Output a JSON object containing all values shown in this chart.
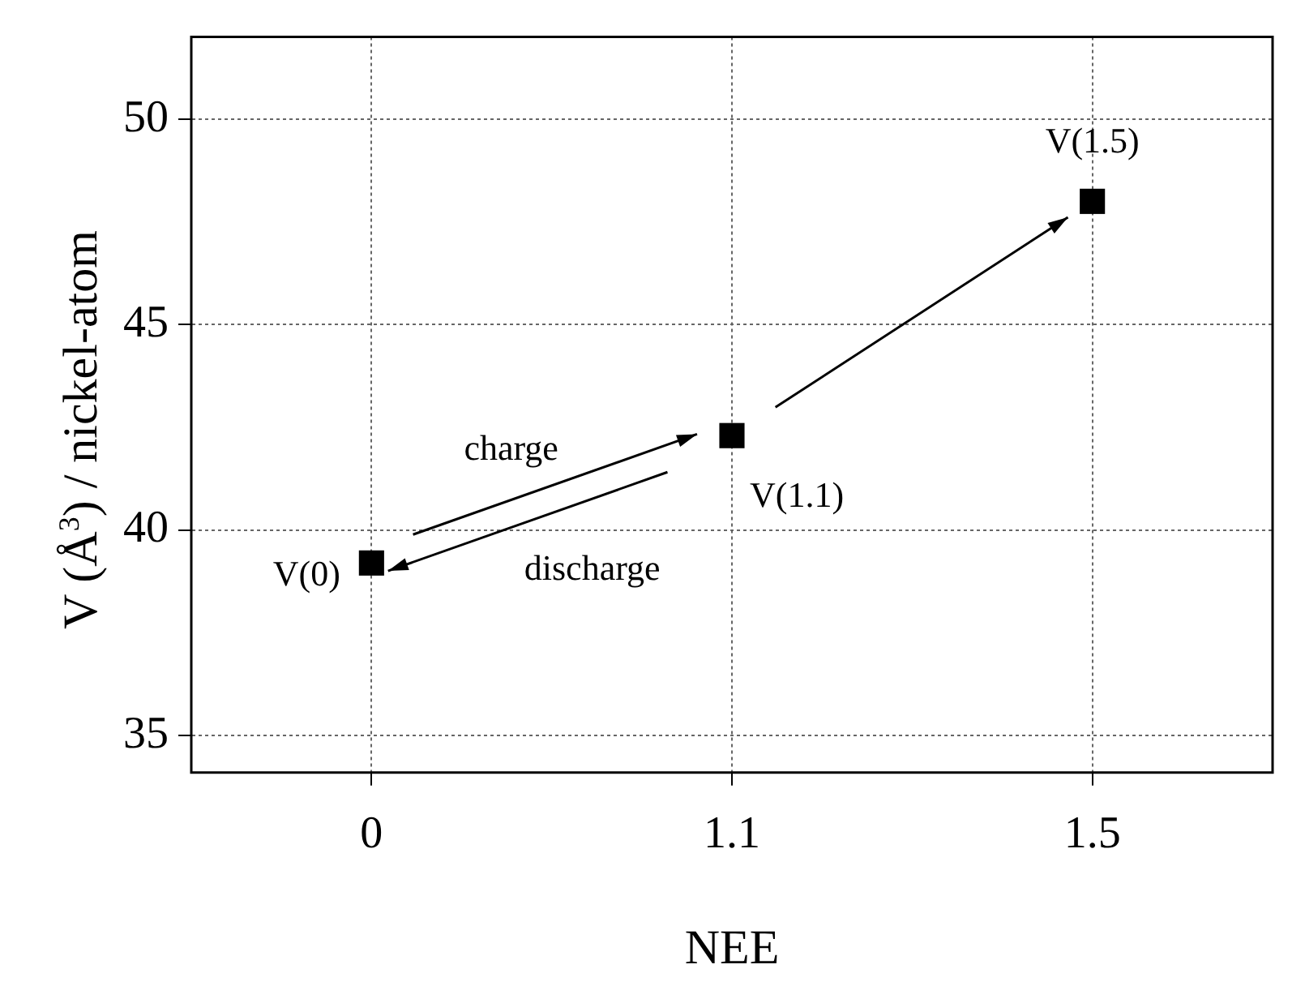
{
  "chart_data": {
    "type": "scatter",
    "xlabel": "NEE",
    "ylabel": "V (Å$^{3}$) / nickel-atom",
    "categories": [
      "0",
      "1.1",
      "1.5"
    ],
    "series": [
      {
        "color": "#000000",
        "values": [
          39.2,
          42.3,
          48.0
        ]
      }
    ],
    "ylim": [
      34.1,
      52
    ],
    "yticks": [
      35,
      40,
      45,
      50
    ],
    "grid": true,
    "legend": false,
    "marker": "square",
    "annotations": [
      {
        "text": "V(0)",
        "x": "0",
        "y": 39.2
      },
      {
        "text": "V(1.1)",
        "x": "1.1",
        "y": 42.3
      },
      {
        "text": "V(1.5)",
        "x": "1.5",
        "y": 48.0
      },
      "charge",
      "discharge"
    ]
  }
}
